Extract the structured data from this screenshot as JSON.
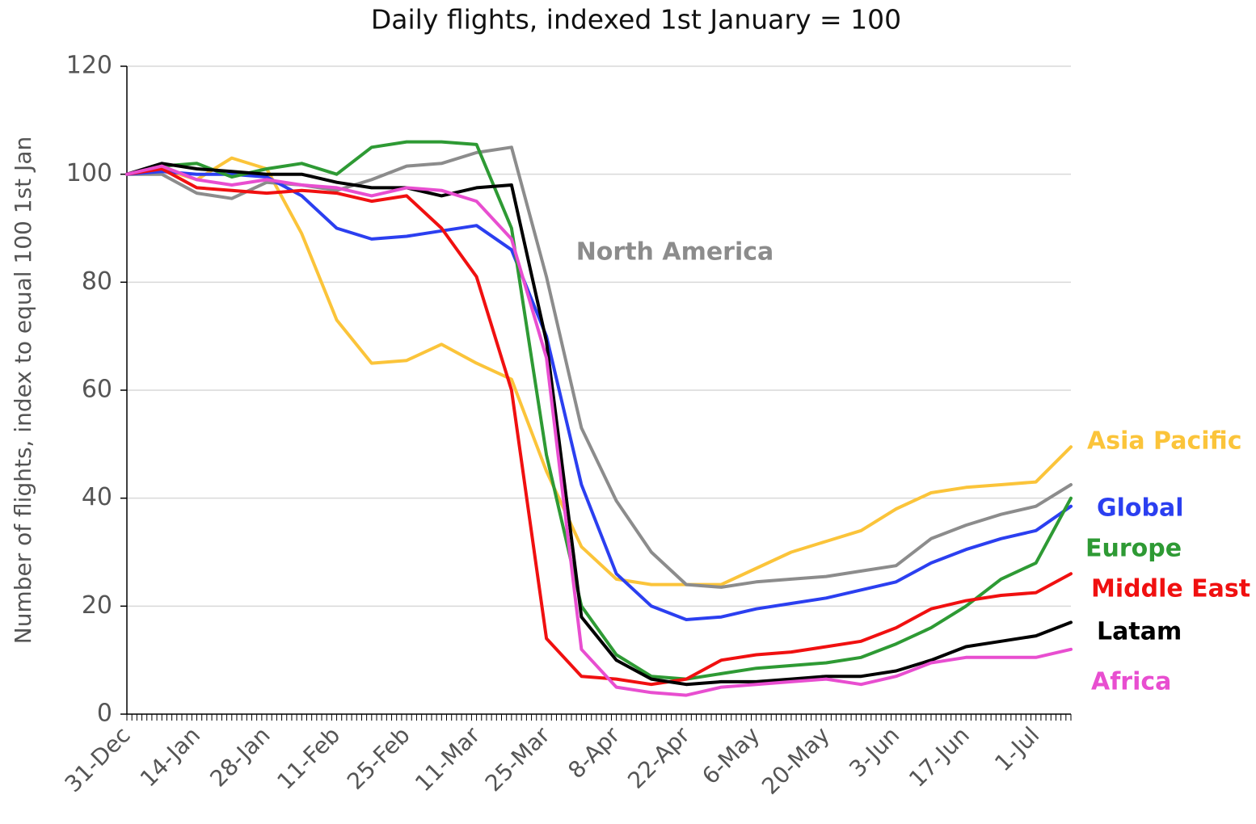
{
  "chart_data": {
    "type": "line",
    "title": "Daily flights, indexed 1st January = 100",
    "y_label": "Number of flights, index to equal 100 1st Jan",
    "categories": [
      "31-Dec",
      null,
      "14-Jan",
      null,
      "28-Jan",
      null,
      "11-Feb",
      null,
      "25-Feb",
      null,
      "11-Mar",
      null,
      "25-Mar",
      null,
      "8-Apr",
      null,
      "22-Apr",
      null,
      "6-May",
      null,
      "20-May",
      null,
      "3-Jun",
      null,
      "17-Jun",
      null,
      "1-Jul",
      null
    ],
    "series": [
      {
        "name": "Asia Pacific",
        "color": "#fbc43a",
        "values": [
          100,
          101,
          99,
          103,
          101,
          89,
          73,
          65,
          65.5,
          68.5,
          65,
          62,
          45,
          31,
          25,
          24,
          24,
          24,
          27,
          30,
          32,
          34,
          38,
          41,
          42,
          42.5,
          43,
          49.5
        ]
      },
      {
        "name": "North America",
        "color": "#8c8c8c",
        "values": [
          100,
          100,
          96.5,
          95.5,
          98.5,
          98,
          97,
          99,
          101.5,
          102,
          104,
          105,
          81,
          53,
          39.5,
          30,
          24,
          23.5,
          24.5,
          25,
          25.5,
          26.5,
          27.5,
          32.5,
          35,
          37,
          38.5,
          42.5
        ]
      },
      {
        "name": "Global",
        "color": "#2b3ff0",
        "values": [
          100,
          100.5,
          100,
          100,
          99.5,
          96,
          90,
          88,
          88.5,
          89.5,
          90.5,
          86,
          70,
          42.5,
          26,
          20,
          17.5,
          18,
          19.5,
          20.5,
          21.5,
          23,
          24.5,
          28,
          30.5,
          32.5,
          34,
          38.5
        ]
      },
      {
        "name": "Europe",
        "color": "#2e9a34",
        "values": [
          100,
          101.5,
          102,
          99.5,
          101,
          102,
          100,
          105,
          106,
          106,
          105.5,
          90,
          48,
          20,
          11,
          7,
          6.5,
          7.5,
          8.5,
          9,
          9.5,
          10.5,
          13,
          16,
          20,
          25,
          28,
          40
        ]
      },
      {
        "name": "Middle East",
        "color": "#f01010",
        "values": [
          100,
          101,
          97.5,
          97,
          96.5,
          97,
          96.5,
          95,
          96,
          90,
          81,
          60,
          14,
          7,
          6.5,
          5.5,
          6.5,
          10,
          11,
          11.5,
          12.5,
          13.5,
          16,
          19.5,
          21,
          22,
          22.5,
          26
        ]
      },
      {
        "name": "Latam",
        "color": "#000000",
        "values": [
          100,
          102,
          101,
          100.5,
          100,
          100,
          98.5,
          97.5,
          97.5,
          96,
          97.5,
          98,
          69,
          18,
          10,
          6.5,
          5.5,
          6,
          6,
          6.5,
          7,
          7,
          8,
          10,
          12.5,
          13.5,
          14.5,
          17
        ]
      },
      {
        "name": "Africa",
        "color": "#e84ed0",
        "values": [
          100,
          101.5,
          99,
          98,
          99,
          98,
          97.5,
          96,
          97.5,
          97,
          95,
          88,
          66,
          12,
          5,
          4,
          3.5,
          5,
          5.5,
          6,
          6.5,
          5.5,
          7,
          9.5,
          10.5,
          10.5,
          10.5,
          12
        ]
      }
    ],
    "ylim": [
      0,
      120
    ],
    "yticks": [
      0,
      20,
      40,
      60,
      80,
      100,
      120
    ],
    "grid": true
  }
}
